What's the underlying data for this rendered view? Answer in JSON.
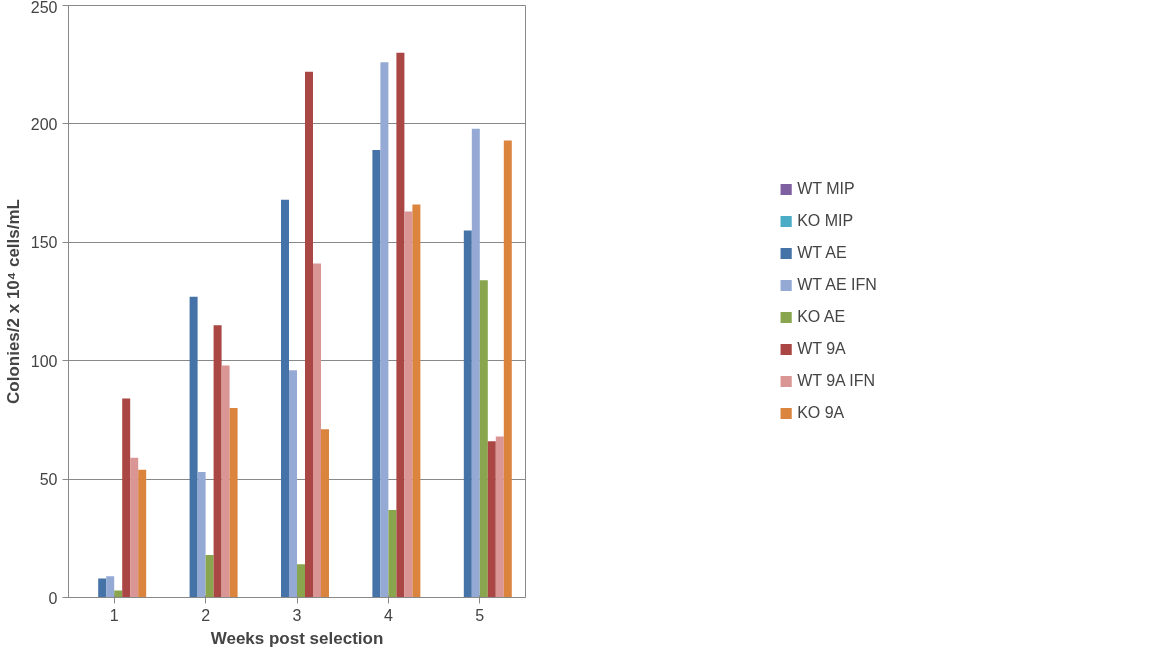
{
  "chart_data": {
    "type": "bar",
    "xlabel": "Weeks post selection",
    "ylabel": "Colonies/2 x 10⁴ cells/mL",
    "categories": [
      "1",
      "2",
      "3",
      "4",
      "5"
    ],
    "series": [
      {
        "name": "WT MIP",
        "color": "#7e5fa0",
        "values": [
          0,
          0,
          0,
          0,
          0
        ]
      },
      {
        "name": "KO MIP",
        "color": "#4bacc6",
        "values": [
          0,
          0,
          0,
          0,
          0
        ]
      },
      {
        "name": "WT AE",
        "color": "#4572a7",
        "values": [
          8,
          127,
          168,
          189,
          155
        ]
      },
      {
        "name": "WT AE IFN",
        "color": "#94aad5",
        "values": [
          9,
          53,
          96,
          226,
          198
        ]
      },
      {
        "name": "KO AE",
        "color": "#89a54e",
        "values": [
          3,
          18,
          14,
          37,
          134
        ]
      },
      {
        "name": "WT 9A",
        "color": "#aa4643",
        "values": [
          84,
          115,
          222,
          230,
          66
        ]
      },
      {
        "name": "WT 9A IFN",
        "color": "#d99694",
        "values": [
          59,
          98,
          141,
          163,
          68
        ]
      },
      {
        "name": "KO 9A",
        "color": "#db843d",
        "values": [
          54,
          80,
          71,
          166,
          193
        ]
      }
    ],
    "ylim": [
      0,
      250
    ],
    "yticks": [
      0,
      50,
      100,
      150,
      200,
      250
    ],
    "grid": "y",
    "legend": "right"
  }
}
